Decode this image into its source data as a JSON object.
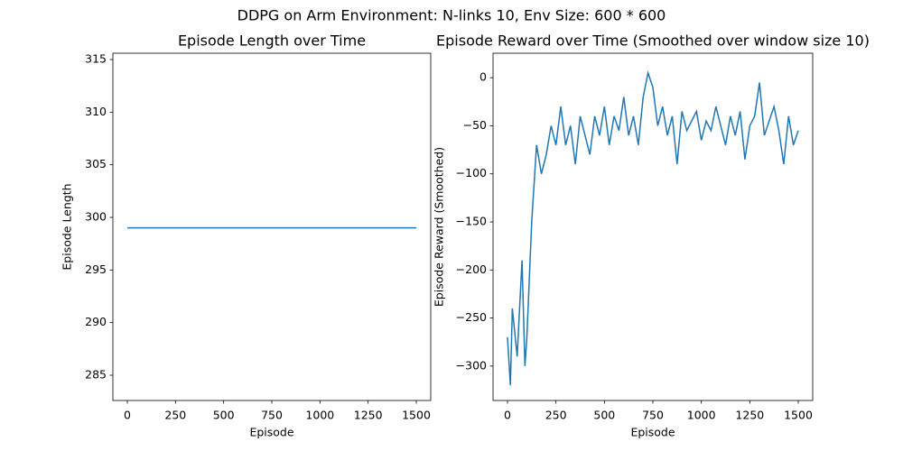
{
  "title": "DDPG on Arm Environment: N-links 10, Env Size: 600 * 600",
  "chart_data": [
    {
      "type": "line",
      "title": "Episode Length over Time",
      "x_label": "Episode",
      "y_label": "Episode Length",
      "x": [
        0,
        1500
      ],
      "series": [
        {
          "color": "#1f77b4",
          "values": [
            299,
            299
          ]
        }
      ],
      "xlim": [
        -75,
        1575
      ],
      "ylim": [
        282.6,
        315.6
      ],
      "xticks": [
        0,
        250,
        500,
        750,
        1000,
        1250,
        1500
      ],
      "yticks": [
        285,
        290,
        295,
        300,
        305,
        310,
        315
      ]
    },
    {
      "type": "line",
      "title": "Episode Reward over Time (Smoothed over window size 10)",
      "x_label": "Episode",
      "y_label": "Episode Reward (Smoothed)",
      "x": [
        0,
        15,
        25,
        50,
        75,
        90,
        100,
        125,
        150,
        175,
        200,
        225,
        250,
        275,
        300,
        325,
        350,
        375,
        400,
        425,
        450,
        475,
        500,
        525,
        550,
        575,
        600,
        625,
        650,
        675,
        700,
        725,
        750,
        775,
        800,
        825,
        850,
        875,
        900,
        925,
        950,
        975,
        1000,
        1025,
        1050,
        1075,
        1100,
        1125,
        1150,
        1175,
        1200,
        1225,
        1250,
        1275,
        1300,
        1325,
        1350,
        1375,
        1400,
        1425,
        1450,
        1475,
        1500
      ],
      "series": [
        {
          "color": "#1f77b4",
          "values": [
            -270,
            -320,
            -240,
            -290,
            -190,
            -300,
            -270,
            -150,
            -70,
            -100,
            -80,
            -50,
            -70,
            -30,
            -70,
            -50,
            -90,
            -40,
            -60,
            -80,
            -40,
            -60,
            -30,
            -70,
            -40,
            -55,
            -20,
            -60,
            -40,
            -70,
            -20,
            5,
            -10,
            -50,
            -30,
            -60,
            -40,
            -90,
            -35,
            -55,
            -45,
            -35,
            -65,
            -45,
            -55,
            -30,
            -50,
            -70,
            -40,
            -60,
            -35,
            -85,
            -50,
            -40,
            -5,
            -60,
            -45,
            -30,
            -55,
            -90,
            -40,
            -70,
            -55
          ]
        }
      ],
      "xlim": [
        -74.5,
        1574.5
      ],
      "ylim": [
        -335.8,
        25.5
      ],
      "xticks": [
        0,
        250,
        500,
        750,
        1000,
        1250,
        1500
      ],
      "yticks": [
        {
          "value": -300,
          "label": "−300"
        },
        {
          "value": -250,
          "label": "−250"
        },
        {
          "value": -200,
          "label": "−200"
        },
        {
          "value": -150,
          "label": "−150"
        },
        {
          "value": -100,
          "label": "−100"
        },
        {
          "value": -50,
          "label": "−50"
        },
        0
      ]
    }
  ]
}
